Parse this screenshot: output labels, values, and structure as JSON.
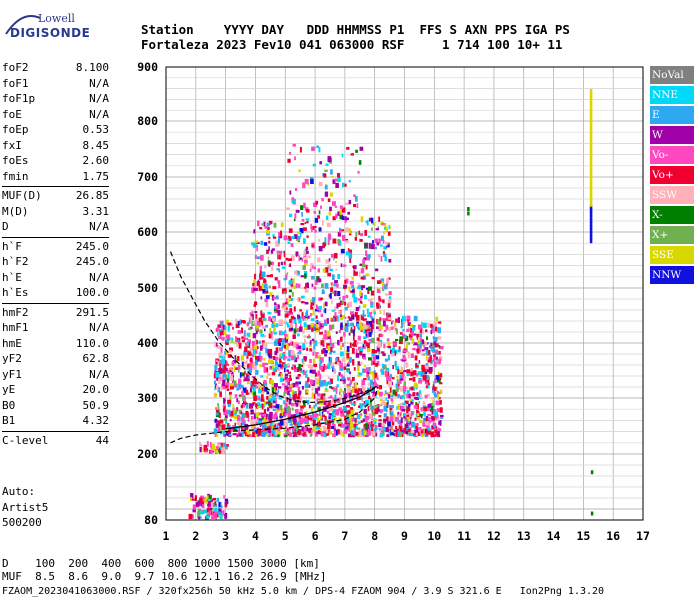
{
  "logo": {
    "top": "Lowell",
    "bottom": "DIGISONDE"
  },
  "header": {
    "line1": "Station    YYYY DAY   DDD HHMMSS P1  FFS S AXN PPS IGA PS",
    "line2": "Fortaleza 2023 Fev10 041 063000 RSF     1 714 100 10+ 11"
  },
  "params": [
    {
      "group": [
        {
          "name": "foF2",
          "value": "8.100"
        },
        {
          "name": "foF1",
          "value": "N/A"
        },
        {
          "name": "foF1p",
          "value": "N/A"
        },
        {
          "name": "foE",
          "value": "N/A"
        },
        {
          "name": "foEp",
          "value": "0.53"
        },
        {
          "name": "fxI",
          "value": "8.45"
        },
        {
          "name": "foEs",
          "value": "2.60"
        },
        {
          "name": "fmin",
          "value": "1.75"
        }
      ]
    },
    {
      "group": [
        {
          "name": "MUF(D)",
          "value": "26.85"
        },
        {
          "name": "M(D)",
          "value": "3.31"
        },
        {
          "name": "D",
          "value": "N/A"
        }
      ]
    },
    {
      "group": [
        {
          "name": "h`F",
          "value": "245.0"
        },
        {
          "name": "h`F2",
          "value": "245.0"
        },
        {
          "name": "h`E",
          "value": "N/A"
        },
        {
          "name": "h`Es",
          "value": "100.0"
        }
      ]
    },
    {
      "group": [
        {
          "name": "hmF2",
          "value": "291.5"
        },
        {
          "name": "hmF1",
          "value": "N/A"
        },
        {
          "name": "hmE",
          "value": "110.0"
        },
        {
          "name": "yF2",
          "value": "62.8"
        },
        {
          "name": "yF1",
          "value": "N/A"
        },
        {
          "name": "yE",
          "value": "20.0"
        },
        {
          "name": "B0",
          "value": "50.9"
        },
        {
          "name": "B1",
          "value": "4.32"
        }
      ]
    },
    {
      "group": [
        {
          "name": "C-level",
          "value": "44"
        }
      ]
    }
  ],
  "auto": {
    "line1": "Auto:",
    "line2": "Artist5",
    "line3": "500200"
  },
  "legend": [
    {
      "label": "NoVal",
      "color": "#808080"
    },
    {
      "label": "NNE",
      "color": "#00d8f8"
    },
    {
      "label": "E",
      "color": "#2ea8f0"
    },
    {
      "label": "W",
      "color": "#a000a8"
    },
    {
      "label": "Vo-",
      "color": "#ff48c0"
    },
    {
      "label": "Vo+",
      "color": "#f00030"
    },
    {
      "label": "SSW",
      "color": "#ffb0b8"
    },
    {
      "label": "X-",
      "color": "#008000"
    },
    {
      "label": "X+",
      "color": "#70b050"
    },
    {
      "label": "SSE",
      "color": "#d8d800"
    },
    {
      "label": "NNW",
      "color": "#1010e0"
    }
  ],
  "footer": {
    "line1": "D    100  200  400  600  800 1000 1500 3000 [km]",
    "line2": "MUF  8.5  8.6  9.0  9.7 10.6 12.1 16.2 26.9 [MHz]",
    "line3": "FZAOM_2023041063000.RSF / 320fx256h 50 kHz 5.0 km / DPS-4 FZAOM 904 / 3.9 S 321.6 E   Ion2Png 1.3.20"
  },
  "chart_data": {
    "type": "scatter",
    "xlim": [
      1,
      17
    ],
    "ylim": [
      80,
      900
    ],
    "xticks": [
      "1",
      "2",
      "3",
      "4",
      "5",
      "6",
      "7",
      "8",
      "9",
      "10",
      "11",
      "12",
      "13",
      "14",
      "15",
      "16",
      "17"
    ],
    "yticks": [
      "80",
      "200",
      "300",
      "400",
      "500",
      "600",
      "700",
      "800",
      "900"
    ],
    "grid": true,
    "profile_dashed": [
      [
        1.15,
        565
      ],
      [
        1.5,
        520
      ],
      [
        1.9,
        480
      ],
      [
        2.3,
        440
      ],
      [
        2.8,
        400
      ],
      [
        3.3,
        370
      ],
      [
        3.8,
        345
      ],
      [
        4.3,
        320
      ],
      [
        4.8,
        304
      ],
      [
        5.3,
        295
      ],
      [
        5.8,
        292
      ],
      [
        6.3,
        293
      ],
      [
        6.8,
        297
      ],
      [
        7.3,
        304
      ],
      [
        7.7,
        312
      ],
      [
        8.1,
        322
      ]
    ],
    "trace_dashed": [
      [
        1.15,
        220
      ],
      [
        1.5,
        228
      ],
      [
        2,
        234
      ],
      [
        2.5,
        237
      ],
      [
        3,
        240
      ],
      [
        4,
        243
      ],
      [
        5,
        246
      ],
      [
        6,
        252
      ],
      [
        7,
        262
      ],
      [
        7.5,
        275
      ],
      [
        8,
        300
      ],
      [
        8.1,
        320
      ]
    ],
    "profile_solid": [
      [
        3,
        245
      ],
      [
        4,
        252
      ],
      [
        5,
        262
      ],
      [
        6,
        275
      ],
      [
        7,
        292
      ],
      [
        7.5,
        302
      ],
      [
        8,
        318
      ]
    ],
    "echo_regions": [
      {
        "fmin": 1.75,
        "fmax": 3.0,
        "hmin": 80,
        "hmax": 120,
        "density": 90
      },
      {
        "fmin": 2.1,
        "fmax": 3.0,
        "hmin": 200,
        "hmax": 215,
        "density": 40
      },
      {
        "fmin": 2.6,
        "fmax": 10.2,
        "hmin": 230,
        "hmax": 440,
        "density": 2200
      },
      {
        "fmin": 3.8,
        "fmax": 8.5,
        "hmin": 440,
        "hmax": 620,
        "density": 550
      },
      {
        "fmin": 5.0,
        "fmax": 7.5,
        "hmin": 620,
        "hmax": 760,
        "density": 90
      }
    ],
    "vertical_bar": {
      "f": 15.25,
      "hmin": 580,
      "hmax": 850
    },
    "isolated": [
      {
        "f": 11.1,
        "h": 640
      },
      {
        "f": 11.1,
        "h": 632
      },
      {
        "f": 15.25,
        "h": 165
      },
      {
        "f": 15.25,
        "h": 90
      }
    ]
  }
}
